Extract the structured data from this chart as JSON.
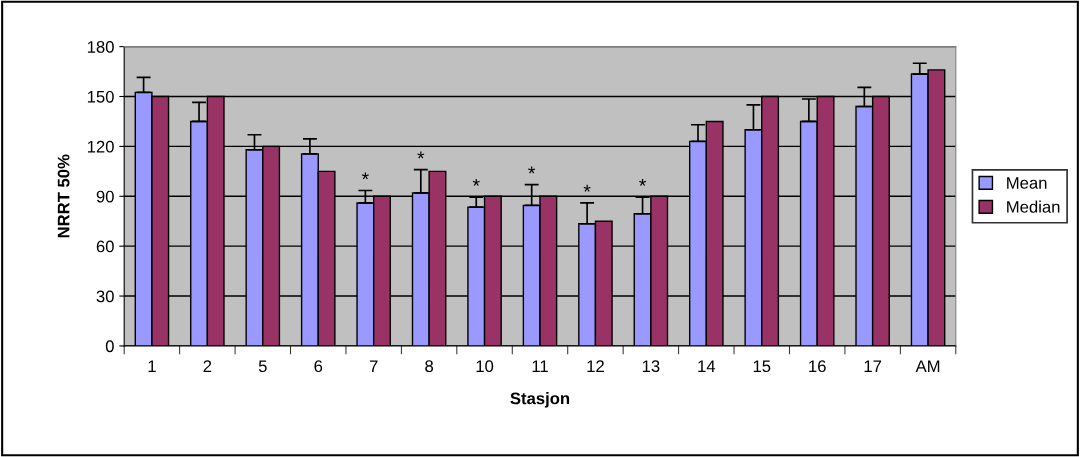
{
  "chart_data": {
    "type": "bar",
    "xlabel": "Stasjon",
    "ylabel": "NRRT 50%",
    "categories": [
      "1",
      "2",
      "5",
      "6",
      "7",
      "8",
      "10",
      "11",
      "12",
      "13",
      "14",
      "15",
      "16",
      "17",
      "AM"
    ],
    "series": [
      {
        "name": "Mean",
        "color": "#9999ff",
        "values": [
          152.5,
          135,
          118,
          115.5,
          86,
          92,
          83.5,
          84.5,
          73.5,
          79.5,
          123,
          130,
          135,
          144,
          163.5
        ],
        "errors": [
          [
            152.5,
            161.5
          ],
          [
            135,
            146.5
          ],
          [
            118,
            127
          ],
          [
            115.5,
            124.5
          ],
          [
            86,
            93.5
          ],
          [
            92,
            106
          ],
          [
            83.5,
            89.5
          ],
          [
            84.5,
            97
          ],
          [
            73.5,
            86
          ],
          [
            79.5,
            89.5
          ],
          [
            123,
            133
          ],
          [
            130,
            145
          ],
          [
            135,
            148.5
          ],
          [
            144,
            155.5
          ],
          [
            163.5,
            170
          ]
        ]
      },
      {
        "name": "Median",
        "color": "#993366",
        "values": [
          150,
          150,
          120,
          105,
          90,
          105,
          90,
          90,
          75,
          90,
          135,
          150,
          150,
          150,
          166
        ]
      }
    ],
    "annotations": [
      {
        "text": "*",
        "x": "7",
        "y": 93.5
      },
      {
        "text": "*",
        "x": "8",
        "y": 106
      },
      {
        "text": "*",
        "x": "10",
        "y": 89.5
      },
      {
        "text": "*",
        "x": "11",
        "y": 97
      },
      {
        "text": "*",
        "x": "12",
        "y": 86
      },
      {
        "text": "*",
        "x": "13",
        "y": 89.5
      }
    ],
    "ylim": [
      0,
      180
    ],
    "yticks": [
      0,
      30,
      60,
      90,
      120,
      150,
      180
    ],
    "grid": "y",
    "legend": "right"
  }
}
